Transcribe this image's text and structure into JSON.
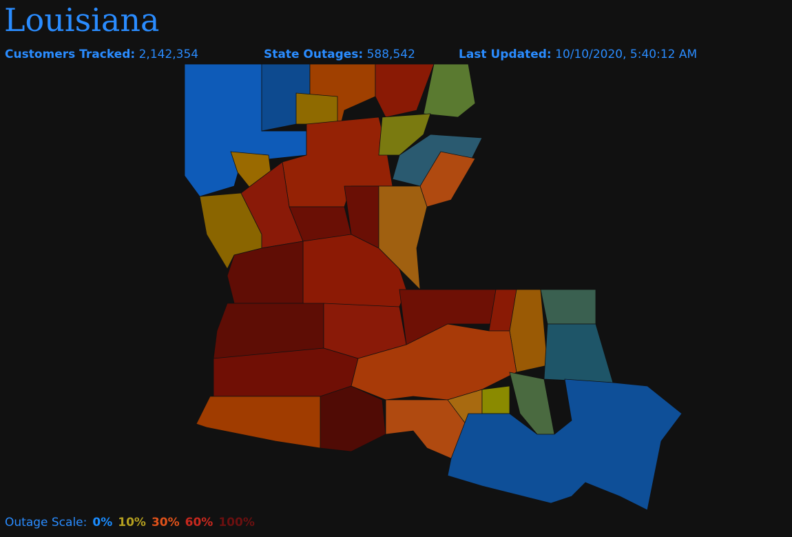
{
  "header": {
    "title": "Louisiana",
    "stats": [
      {
        "label": "Customers Tracked:",
        "value": "2,142,354"
      },
      {
        "label": "State Outages:",
        "value": "588,542"
      },
      {
        "label": "Last Updated:",
        "value": "10/10/2020, 5:40:12 AM"
      }
    ]
  },
  "scale": {
    "label": "Outage Scale:",
    "steps": [
      {
        "label": "0%",
        "color": "#1a8cff"
      },
      {
        "label": "10%",
        "color": "#b5a020"
      },
      {
        "label": "30%",
        "color": "#e0521a"
      },
      {
        "label": "60%",
        "color": "#c8281e"
      },
      {
        "label": "100%",
        "color": "#6b1010"
      }
    ]
  }
}
